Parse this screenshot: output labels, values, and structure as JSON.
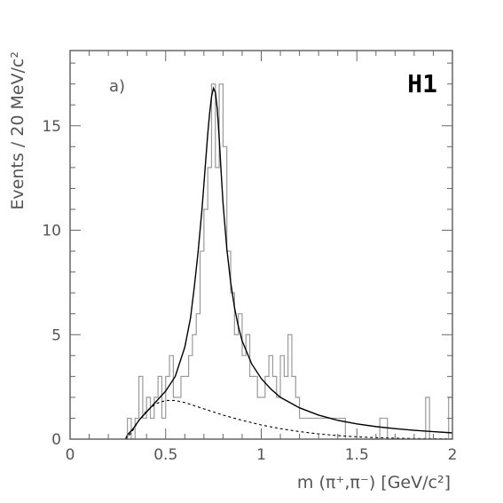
{
  "chart_data": {
    "type": "line",
    "panel_label": "a)",
    "experiment_label": "H1",
    "xlabel": "m (π⁺,π⁻)  [GeV/c²]",
    "ylabel": "Events / 20 MeV/c²",
    "xlim": [
      0,
      2
    ],
    "ylim": [
      0,
      18.6
    ],
    "x_ticks": [
      {
        "value": 0,
        "label": "0"
      },
      {
        "value": 0.5,
        "label": "0.5"
      },
      {
        "value": 1,
        "label": "1"
      },
      {
        "value": 1.5,
        "label": "1.5"
      },
      {
        "value": 2,
        "label": "2"
      }
    ],
    "y_ticks": [
      {
        "value": 0,
        "label": "0"
      },
      {
        "value": 5,
        "label": "5"
      },
      {
        "value": 10,
        "label": "10"
      },
      {
        "value": 15,
        "label": "15"
      }
    ],
    "histogram": {
      "name": "",
      "color": "#9a9a9a",
      "bin_edges": [
        0.28,
        0.3,
        0.32,
        0.34,
        0.36,
        0.38,
        0.4,
        0.42,
        0.44,
        0.46,
        0.48,
        0.5,
        0.52,
        0.54,
        0.56,
        0.58,
        0.6,
        0.62,
        0.64,
        0.66,
        0.68,
        0.7,
        0.72,
        0.74,
        0.76,
        0.78,
        0.8,
        0.82,
        0.84,
        0.86,
        0.88,
        0.9,
        0.92,
        0.94,
        0.96,
        0.98,
        1.0,
        1.02,
        1.04,
        1.06,
        1.08,
        1.1,
        1.12,
        1.14,
        1.16,
        1.18,
        1.2,
        1.22,
        1.24,
        1.26,
        1.28,
        1.3,
        1.32,
        1.34,
        1.36,
        1.38,
        1.4,
        1.42,
        1.44,
        1.46,
        1.48,
        1.5,
        1.52,
        1.54,
        1.56,
        1.58,
        1.6,
        1.62,
        1.64,
        1.66,
        1.68,
        1.7,
        1.72,
        1.74,
        1.76,
        1.78,
        1.8,
        1.82,
        1.84,
        1.86,
        1.88,
        1.9,
        1.92,
        1.94,
        1.96,
        1.98,
        2.0
      ],
      "counts": [
        0,
        1,
        0,
        1,
        3,
        1,
        2,
        1,
        2,
        3,
        1,
        3,
        4,
        2,
        2,
        3,
        3,
        4,
        5,
        6,
        9,
        11,
        13,
        17,
        13,
        17,
        14,
        9,
        7,
        5,
        6,
        4,
        5,
        3,
        3,
        2,
        2,
        3,
        4,
        3,
        2,
        4,
        3,
        5,
        3,
        2,
        1,
        1,
        1,
        1,
        1,
        1,
        1,
        1,
        1,
        1,
        1,
        1,
        0,
        0,
        0,
        0,
        0,
        0,
        0,
        0,
        0,
        1,
        1,
        0,
        0,
        0,
        0,
        0,
        0,
        0,
        0,
        0,
        0,
        2,
        0,
        0,
        0,
        0,
        0,
        2,
        1
      ]
    },
    "series": [
      {
        "name": "",
        "style": "solid",
        "color": "#000000",
        "x": [
          0.29,
          0.3,
          0.33,
          0.36,
          0.4,
          0.45,
          0.5,
          0.55,
          0.6,
          0.63,
          0.65,
          0.67,
          0.69,
          0.7,
          0.71,
          0.72,
          0.73,
          0.74,
          0.75,
          0.76,
          0.77,
          0.78,
          0.79,
          0.8,
          0.82,
          0.84,
          0.86,
          0.88,
          0.9,
          0.95,
          1.0,
          1.05,
          1.1,
          1.2,
          1.3,
          1.4,
          1.5,
          1.6,
          1.7,
          1.8,
          1.9,
          2.0
        ],
        "y": [
          0,
          0.2,
          0.5,
          0.9,
          1.3,
          1.8,
          2.3,
          3.0,
          4.4,
          5.8,
          7.3,
          9.0,
          11.0,
          12.2,
          13.4,
          14.6,
          15.6,
          16.4,
          16.8,
          16.6,
          15.8,
          14.4,
          12.8,
          11.3,
          9.1,
          7.5,
          6.3,
          5.4,
          4.7,
          3.6,
          2.9,
          2.4,
          2.0,
          1.5,
          1.15,
          0.9,
          0.73,
          0.6,
          0.5,
          0.42,
          0.36,
          0.3
        ]
      },
      {
        "name": "",
        "style": "dashed",
        "color": "#000000",
        "x": [
          0.29,
          0.32,
          0.36,
          0.4,
          0.45,
          0.5,
          0.55,
          0.6,
          0.65,
          0.7,
          0.75,
          0.8,
          0.9,
          1.0,
          1.1,
          1.2,
          1.3,
          1.4,
          1.5,
          1.6,
          1.7,
          1.8,
          1.9,
          2.0
        ],
        "y": [
          0,
          0.3,
          0.9,
          1.35,
          1.7,
          1.85,
          1.85,
          1.75,
          1.6,
          1.45,
          1.3,
          1.15,
          0.9,
          0.68,
          0.5,
          0.36,
          0.25,
          0.17,
          0.11,
          0.07,
          0.045,
          0.03,
          0.02,
          0.01
        ]
      }
    ]
  }
}
